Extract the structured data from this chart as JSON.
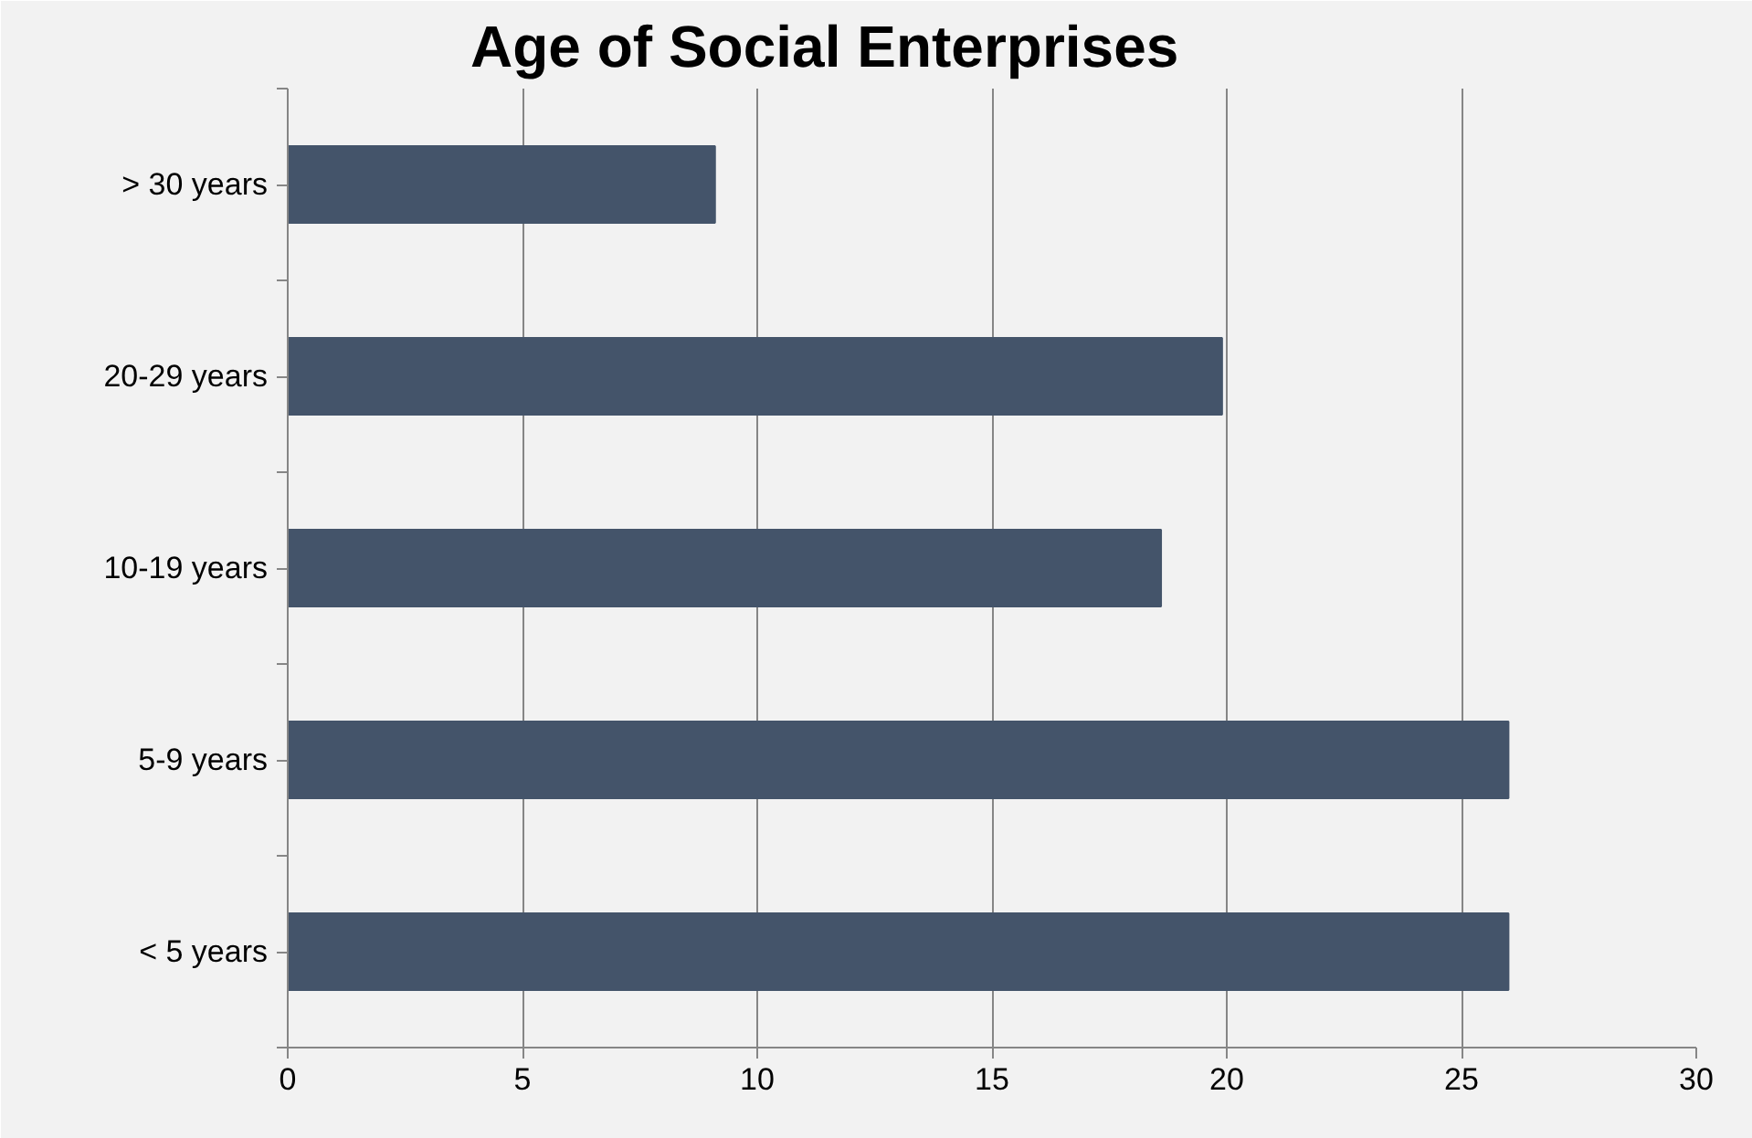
{
  "chart_data": {
    "type": "bar",
    "orientation": "horizontal",
    "title": "Age of Social Enterprises",
    "categories": [
      "> 30 years",
      "20-29 years",
      "10-19 years",
      "5-9 years",
      "< 5 years"
    ],
    "values": [
      9.1,
      19.9,
      18.6,
      26.0,
      26.0
    ],
    "color": "#44546a",
    "xlim": [
      0,
      30
    ],
    "xticks": [
      0,
      5,
      10,
      15,
      20,
      25,
      30
    ],
    "grid": "x"
  }
}
